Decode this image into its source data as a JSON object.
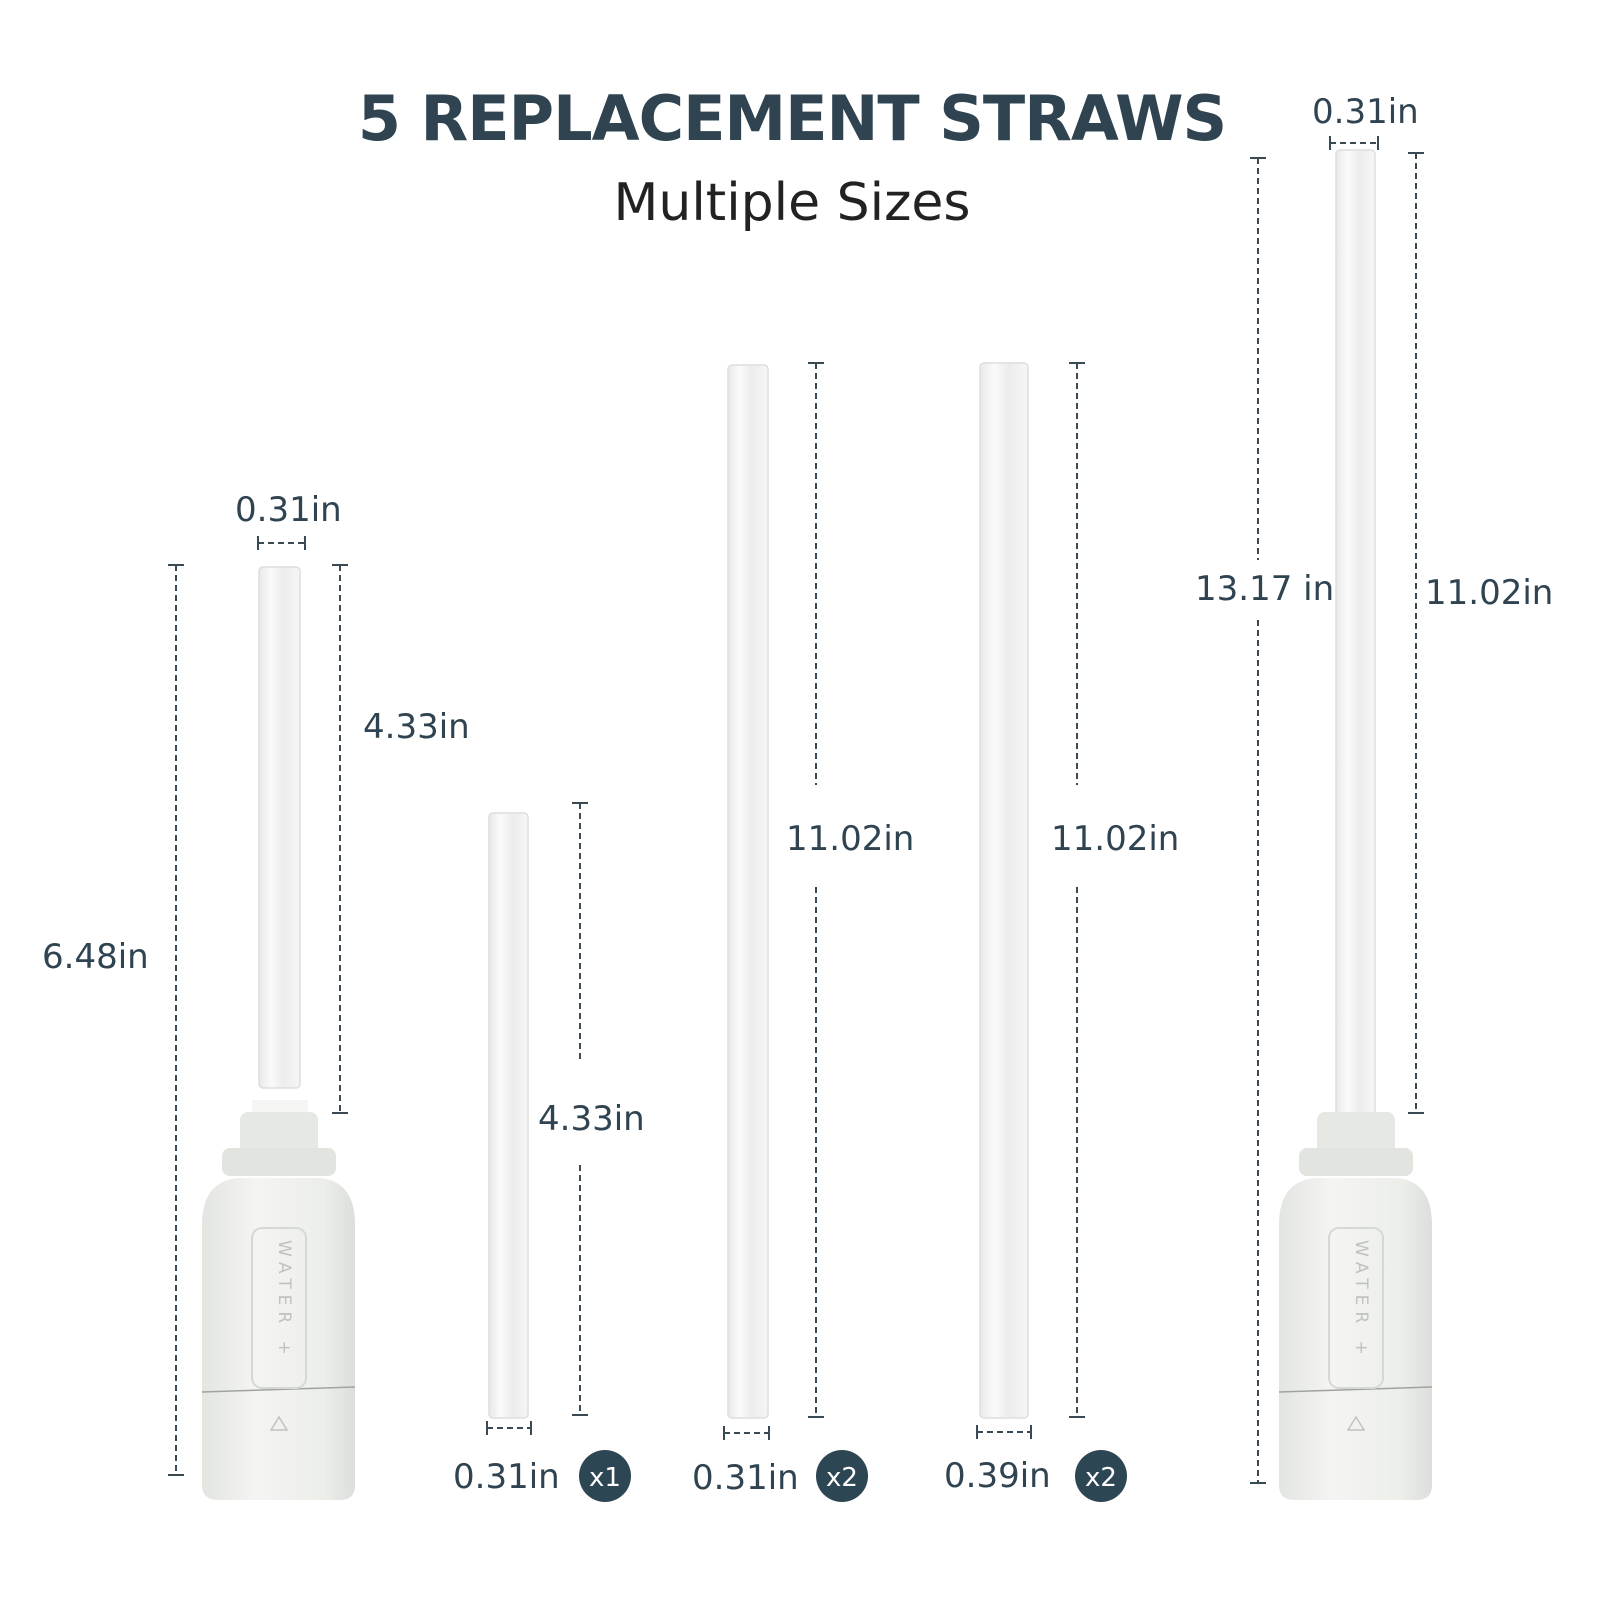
{
  "header": {
    "title": "5 REPLACEMENT STRAWS",
    "subtitle": "Multiple Sizes"
  },
  "left_filter": {
    "brand": "WATER +",
    "straw_width": "0.31in",
    "straw_length": "4.33in",
    "total_height": "6.48in"
  },
  "straws": [
    {
      "length": "4.33in",
      "width": "0.31in",
      "quantity": "x1"
    },
    {
      "length": "11.02in",
      "width": "0.31in",
      "quantity": "x2"
    },
    {
      "length": "11.02in",
      "width": "0.39in",
      "quantity": "x2"
    }
  ],
  "right_filter": {
    "brand": "WATER +",
    "straw_width": "0.31in",
    "straw_length": "11.02in",
    "total_height": "13.17 in"
  },
  "colors": {
    "text": "#2f4350",
    "badge": "#2c4654",
    "straw": "#f2f2f2",
    "filter": "#eceeea"
  }
}
